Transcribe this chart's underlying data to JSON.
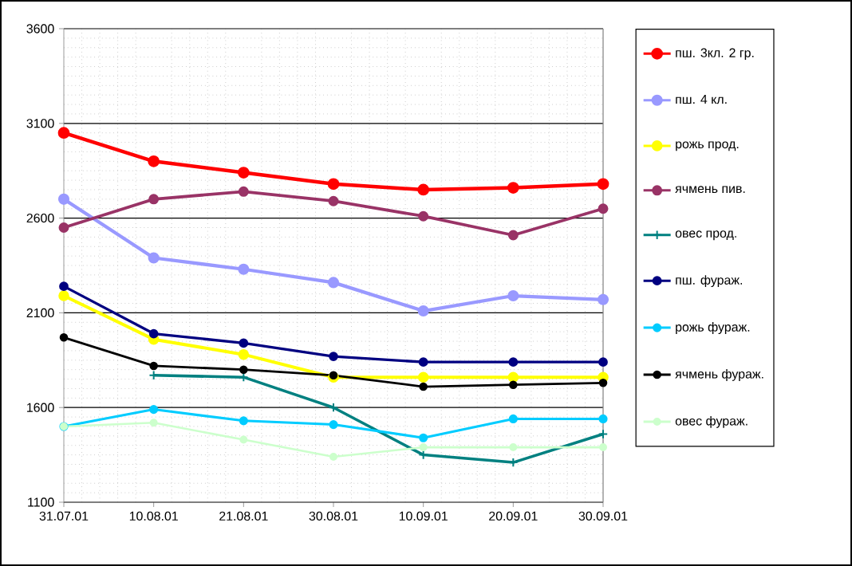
{
  "chart_data": {
    "type": "line",
    "categories": [
      "31.07.01",
      "10.08.01",
      "21.08.01",
      "30.08.01",
      "10.09.01",
      "20.09.01",
      "30.09.01"
    ],
    "ylim": [
      1100,
      3600
    ],
    "yticks": [
      1100,
      1600,
      2100,
      2600,
      3100,
      3600
    ],
    "grid": true,
    "legend": "right",
    "marker": "circle",
    "line_style": "solid",
    "series": [
      {
        "name": "пш. 3кл. 2 гр.",
        "color": "#ff0000",
        "values": [
          3050,
          2900,
          2840,
          2780,
          2750,
          2760,
          2780
        ]
      },
      {
        "name": "пш. 4 кл.",
        "color": "#9999ff",
        "values": [
          2700,
          2390,
          2330,
          2260,
          2110,
          2190,
          2170
        ]
      },
      {
        "name": "рожь прод.",
        "color": "#ffff00",
        "values": [
          2190,
          1960,
          1880,
          1760,
          1760,
          1760,
          1760
        ]
      },
      {
        "name": "ячмень пив.",
        "color": "#993366",
        "values": [
          2550,
          2700,
          2740,
          2690,
          2610,
          2510,
          2650
        ]
      },
      {
        "name": "овес прод.",
        "color": "#008080",
        "marker": "cross",
        "values": [
          null,
          1770,
          1760,
          1600,
          1350,
          1310,
          1460
        ]
      },
      {
        "name": "пш. фураж.",
        "color": "#000080",
        "values": [
          2240,
          1990,
          1940,
          1870,
          1840,
          1840,
          1840
        ]
      },
      {
        "name": "рожь фураж.",
        "color": "#00ccff",
        "values": [
          1500,
          1590,
          1530,
          1510,
          1440,
          1540,
          1540
        ]
      },
      {
        "name": "ячмень фураж.",
        "color": "#000000",
        "values": [
          1970,
          1820,
          1800,
          1770,
          1710,
          1720,
          1730
        ]
      },
      {
        "name": "овес фураж.",
        "color": "#ccffcc",
        "values": [
          1500,
          1520,
          1430,
          1340,
          1390,
          1390,
          1390
        ]
      }
    ]
  }
}
